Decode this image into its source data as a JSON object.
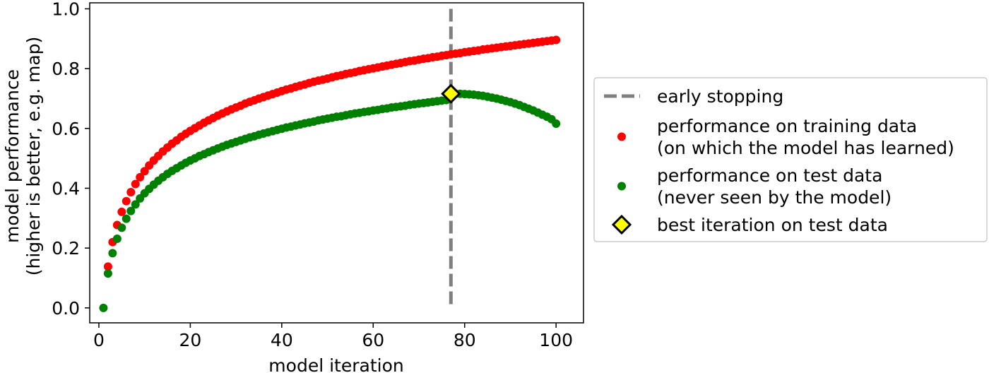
{
  "chart_data": {
    "type": "scatter",
    "xlabel": "model iteration",
    "ylabel": [
      "model performance",
      "(higher is better, e.g. map)"
    ],
    "xlim": [
      -2,
      106
    ],
    "ylim": [
      -0.05,
      1.02
    ],
    "xticks": [
      0,
      20,
      40,
      60,
      80,
      100
    ],
    "xtick_labels": [
      "0",
      "20",
      "40",
      "60",
      "80",
      "100"
    ],
    "yticks": [
      0.0,
      0.2,
      0.4,
      0.6,
      0.8,
      1.0
    ],
    "ytick_labels": [
      "0.0",
      "0.2",
      "0.4",
      "0.6",
      "0.8",
      "1.0"
    ],
    "grid": false,
    "legend_position": "outside-right",
    "early_stopping": {
      "x": 77,
      "y_range": [
        0,
        1
      ]
    },
    "best_point": {
      "x": 77,
      "y": 0.716
    },
    "series": [
      {
        "name": "performance on training data (on which the model has learned)",
        "color": "#ff0000",
        "x_start": 2,
        "x_end": 100,
        "y": [
          0.138,
          0.22,
          0.277,
          0.321,
          0.357,
          0.387,
          0.414,
          0.437,
          0.457,
          0.476,
          0.493,
          0.508,
          0.523,
          0.536,
          0.549,
          0.56,
          0.572,
          0.582,
          0.592,
          0.601,
          0.61,
          0.619,
          0.627,
          0.635,
          0.643,
          0.65,
          0.657,
          0.664,
          0.67,
          0.676,
          0.683,
          0.689,
          0.694,
          0.7,
          0.705,
          0.71,
          0.715,
          0.72,
          0.725,
          0.73,
          0.734,
          0.739,
          0.743,
          0.747,
          0.752,
          0.756,
          0.76,
          0.763,
          0.767,
          0.771,
          0.775,
          0.778,
          0.782,
          0.785,
          0.788,
          0.792,
          0.795,
          0.798,
          0.801,
          0.804,
          0.807,
          0.81,
          0.813,
          0.816,
          0.819,
          0.822,
          0.825,
          0.827,
          0.83,
          0.833,
          0.835,
          0.838,
          0.84,
          0.843,
          0.845,
          0.848,
          0.85,
          0.852,
          0.855,
          0.857,
          0.859,
          0.861,
          0.864,
          0.866,
          0.868,
          0.87,
          0.872,
          0.874,
          0.876,
          0.878,
          0.88,
          0.882,
          0.884,
          0.886,
          0.888,
          0.89,
          0.892,
          0.894,
          0.896
        ]
      },
      {
        "name": "performance on test data (never seen by the model)",
        "color": "#008000",
        "x_start": 1,
        "x_end": 100,
        "y": [
          0.0,
          0.115,
          0.183,
          0.231,
          0.268,
          0.298,
          0.324,
          0.346,
          0.366,
          0.383,
          0.398,
          0.412,
          0.425,
          0.437,
          0.448,
          0.458,
          0.467,
          0.476,
          0.485,
          0.493,
          0.5,
          0.508,
          0.514,
          0.521,
          0.527,
          0.533,
          0.539,
          0.545,
          0.55,
          0.555,
          0.56,
          0.565,
          0.57,
          0.574,
          0.579,
          0.583,
          0.587,
          0.591,
          0.595,
          0.599,
          0.603,
          0.606,
          0.61,
          0.613,
          0.617,
          0.62,
          0.623,
          0.627,
          0.63,
          0.633,
          0.636,
          0.639,
          0.641,
          0.644,
          0.647,
          0.65,
          0.652,
          0.655,
          0.657,
          0.66,
          0.662,
          0.665,
          0.667,
          0.67,
          0.672,
          0.674,
          0.676,
          0.679,
          0.681,
          0.683,
          0.685,
          0.687,
          0.689,
          0.691,
          0.693,
          0.695,
          0.716,
          0.716,
          0.716,
          0.715,
          0.714,
          0.713,
          0.711,
          0.709,
          0.706,
          0.703,
          0.7,
          0.696,
          0.692,
          0.688,
          0.683,
          0.678,
          0.672,
          0.666,
          0.66,
          0.653,
          0.646,
          0.639,
          0.631,
          0.616
        ]
      }
    ],
    "legend": [
      {
        "kind": "line",
        "label": "early stopping"
      },
      {
        "kind": "dot-red",
        "label": "performance on training data\n(on which the model has learned)"
      },
      {
        "kind": "dot-green",
        "label": "performance on test data\n(never seen by the model)"
      },
      {
        "kind": "diamond",
        "label": "best iteration on test data"
      }
    ],
    "colors": {
      "train": "#ff0000",
      "test": "#008000",
      "early_stopping": "#808080",
      "best_fill": "#ffff00",
      "best_edge": "#000000"
    }
  }
}
